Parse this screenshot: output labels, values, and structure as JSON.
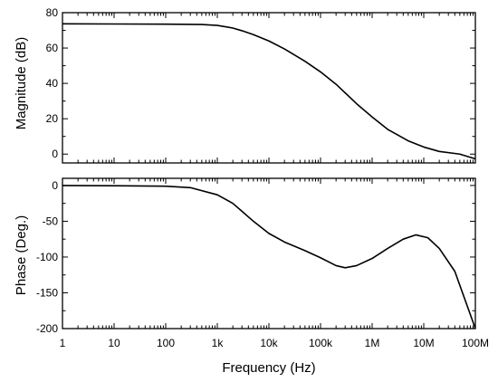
{
  "chart_data": [
    {
      "type": "line",
      "panel": "top",
      "x_scale": "log",
      "xlim": [
        1,
        100000000
      ],
      "ylim": [
        -5,
        80
      ],
      "ylabel": "Magnitude (dB)",
      "yticks": [
        0,
        20,
        40,
        60,
        80
      ],
      "ytick_labels": [
        "0",
        "20",
        "40",
        "60",
        "80"
      ],
      "series": [
        {
          "x": [
            1,
            10,
            100,
            500,
            1000,
            2000,
            3000,
            5000,
            10000,
            20000,
            50000,
            100000,
            200000,
            500000,
            1000000,
            2000000,
            5000000,
            10000000,
            20000000,
            50000000,
            100000000
          ],
          "values": [
            73.7,
            73.6,
            73.5,
            73.3,
            72.8,
            71.3,
            69.8,
            67.6,
            64,
            59.5,
            52.5,
            46.5,
            39.5,
            28.5,
            21,
            14,
            7.5,
            4,
            1.5,
            0,
            -2.7
          ]
        }
      ]
    },
    {
      "type": "line",
      "panel": "bottom",
      "x_scale": "log",
      "xlim": [
        1,
        100000000
      ],
      "ylim": [
        -200,
        10
      ],
      "ylabel": "Phase (Deg.)",
      "xlabel": "Frequency (Hz)",
      "yticks": [
        -200,
        -150,
        -100,
        -50,
        0
      ],
      "ytick_labels": [
        "-200",
        "-150",
        "-100",
        "-50",
        "0"
      ],
      "xticks": [
        1,
        10,
        100,
        1000,
        10000,
        100000,
        1000000,
        10000000,
        100000000
      ],
      "xtick_labels": [
        "1",
        "10",
        "100",
        "1k",
        "10k",
        "100k",
        "1M",
        "10M",
        "100M"
      ],
      "series": [
        {
          "x": [
            1,
            10,
            100,
            300,
            1000,
            2000,
            3000,
            5000,
            10000,
            20000,
            50000,
            100000,
            200000,
            300000,
            500000,
            1000000,
            2000000,
            4000000,
            7000000,
            12000000,
            20000000,
            40000000,
            100000000
          ],
          "values": [
            0,
            -0.3,
            -1,
            -3,
            -13,
            -25,
            -36,
            -50,
            -67,
            -79,
            -91,
            -101,
            -112,
            -115,
            -112,
            -102,
            -88,
            -75,
            -69,
            -73,
            -88,
            -120,
            -200
          ]
        }
      ]
    }
  ]
}
